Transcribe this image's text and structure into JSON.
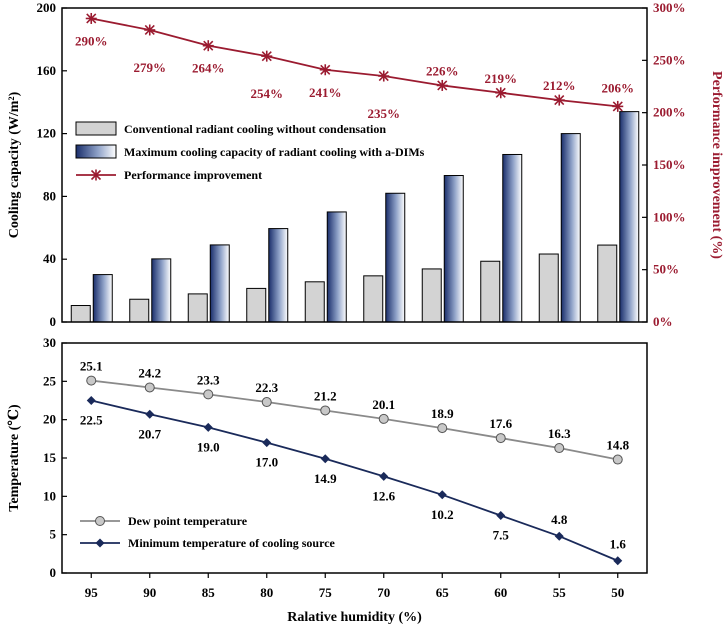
{
  "chart_data": [
    {
      "type": "bar",
      "categories": [
        "95",
        "90",
        "85",
        "80",
        "75",
        "70",
        "65",
        "60",
        "55",
        "50"
      ],
      "ylabel": "Cooling capacity (W/m²)",
      "ylim": [
        0,
        200
      ],
      "yticks": [
        "0",
        "40",
        "80",
        "120",
        "160",
        "200"
      ],
      "y2label": "Performance improvement (%)",
      "y2lim": [
        0,
        300
      ],
      "y2ticks": [
        "0%",
        "50%",
        "100%",
        "150%",
        "200%",
        "250%",
        "300%"
      ],
      "series": [
        {
          "name": "Conventional radiant cooling without condensation",
          "type": "bar",
          "color": "#d3d3d3",
          "values": [
            10.5,
            14.5,
            17.9,
            21.4,
            25.6,
            29.4,
            33.8,
            38.7,
            43.3,
            49.0
          ]
        },
        {
          "name": "Maximum cooling capacity of radiant cooling with a-DIMs",
          "type": "bar",
          "color": "#1f3d7a",
          "values": [
            30.2,
            40.2,
            49.1,
            59.5,
            70.1,
            82.0,
            93.3,
            106.7,
            120.0,
            134.0
          ]
        },
        {
          "name": "Performance improvement",
          "type": "line",
          "axis": "right",
          "color": "#9b1b30",
          "values": [
            290,
            279,
            264,
            254,
            241,
            235,
            226,
            219,
            212,
            206
          ],
          "labels": [
            "290%",
            "279%",
            "264%",
            "254%",
            "241%",
            "235%",
            "226%",
            "219%",
            "212%",
            "206%"
          ]
        }
      ]
    },
    {
      "type": "line",
      "x": [
        95,
        90,
        85,
        80,
        75,
        70,
        65,
        60,
        55,
        50
      ],
      "xticks": [
        "95",
        "90",
        "85",
        "80",
        "75",
        "70",
        "65",
        "60",
        "55",
        "50"
      ],
      "xlabel": "Ralative humidity (%)",
      "ylabel": "Temperature (℃)",
      "ylim": [
        0,
        30
      ],
      "yticks": [
        "0",
        "5",
        "10",
        "15",
        "20",
        "25",
        "30"
      ],
      "series": [
        {
          "name": "Dew point temperature",
          "color": "#8a8a8a",
          "values": [
            25.1,
            24.2,
            23.3,
            22.3,
            21.2,
            20.1,
            18.9,
            17.6,
            16.3,
            14.8
          ],
          "labels": [
            "25.1",
            "24.2",
            "23.3",
            "22.3",
            "21.2",
            "20.1",
            "18.9",
            "17.6",
            "16.3",
            "14.8"
          ]
        },
        {
          "name": "Minimum temperature of cooling source",
          "color": "#1a2a5a",
          "values": [
            22.5,
            20.7,
            19.0,
            17.0,
            14.9,
            12.6,
            10.2,
            7.5,
            4.8,
            1.6
          ],
          "labels": [
            "22.5",
            "20.7",
            "19.0",
            "17.0",
            "14.9",
            "12.6",
            "10.2",
            "7.5",
            "4.8",
            "1.6"
          ]
        }
      ]
    }
  ]
}
